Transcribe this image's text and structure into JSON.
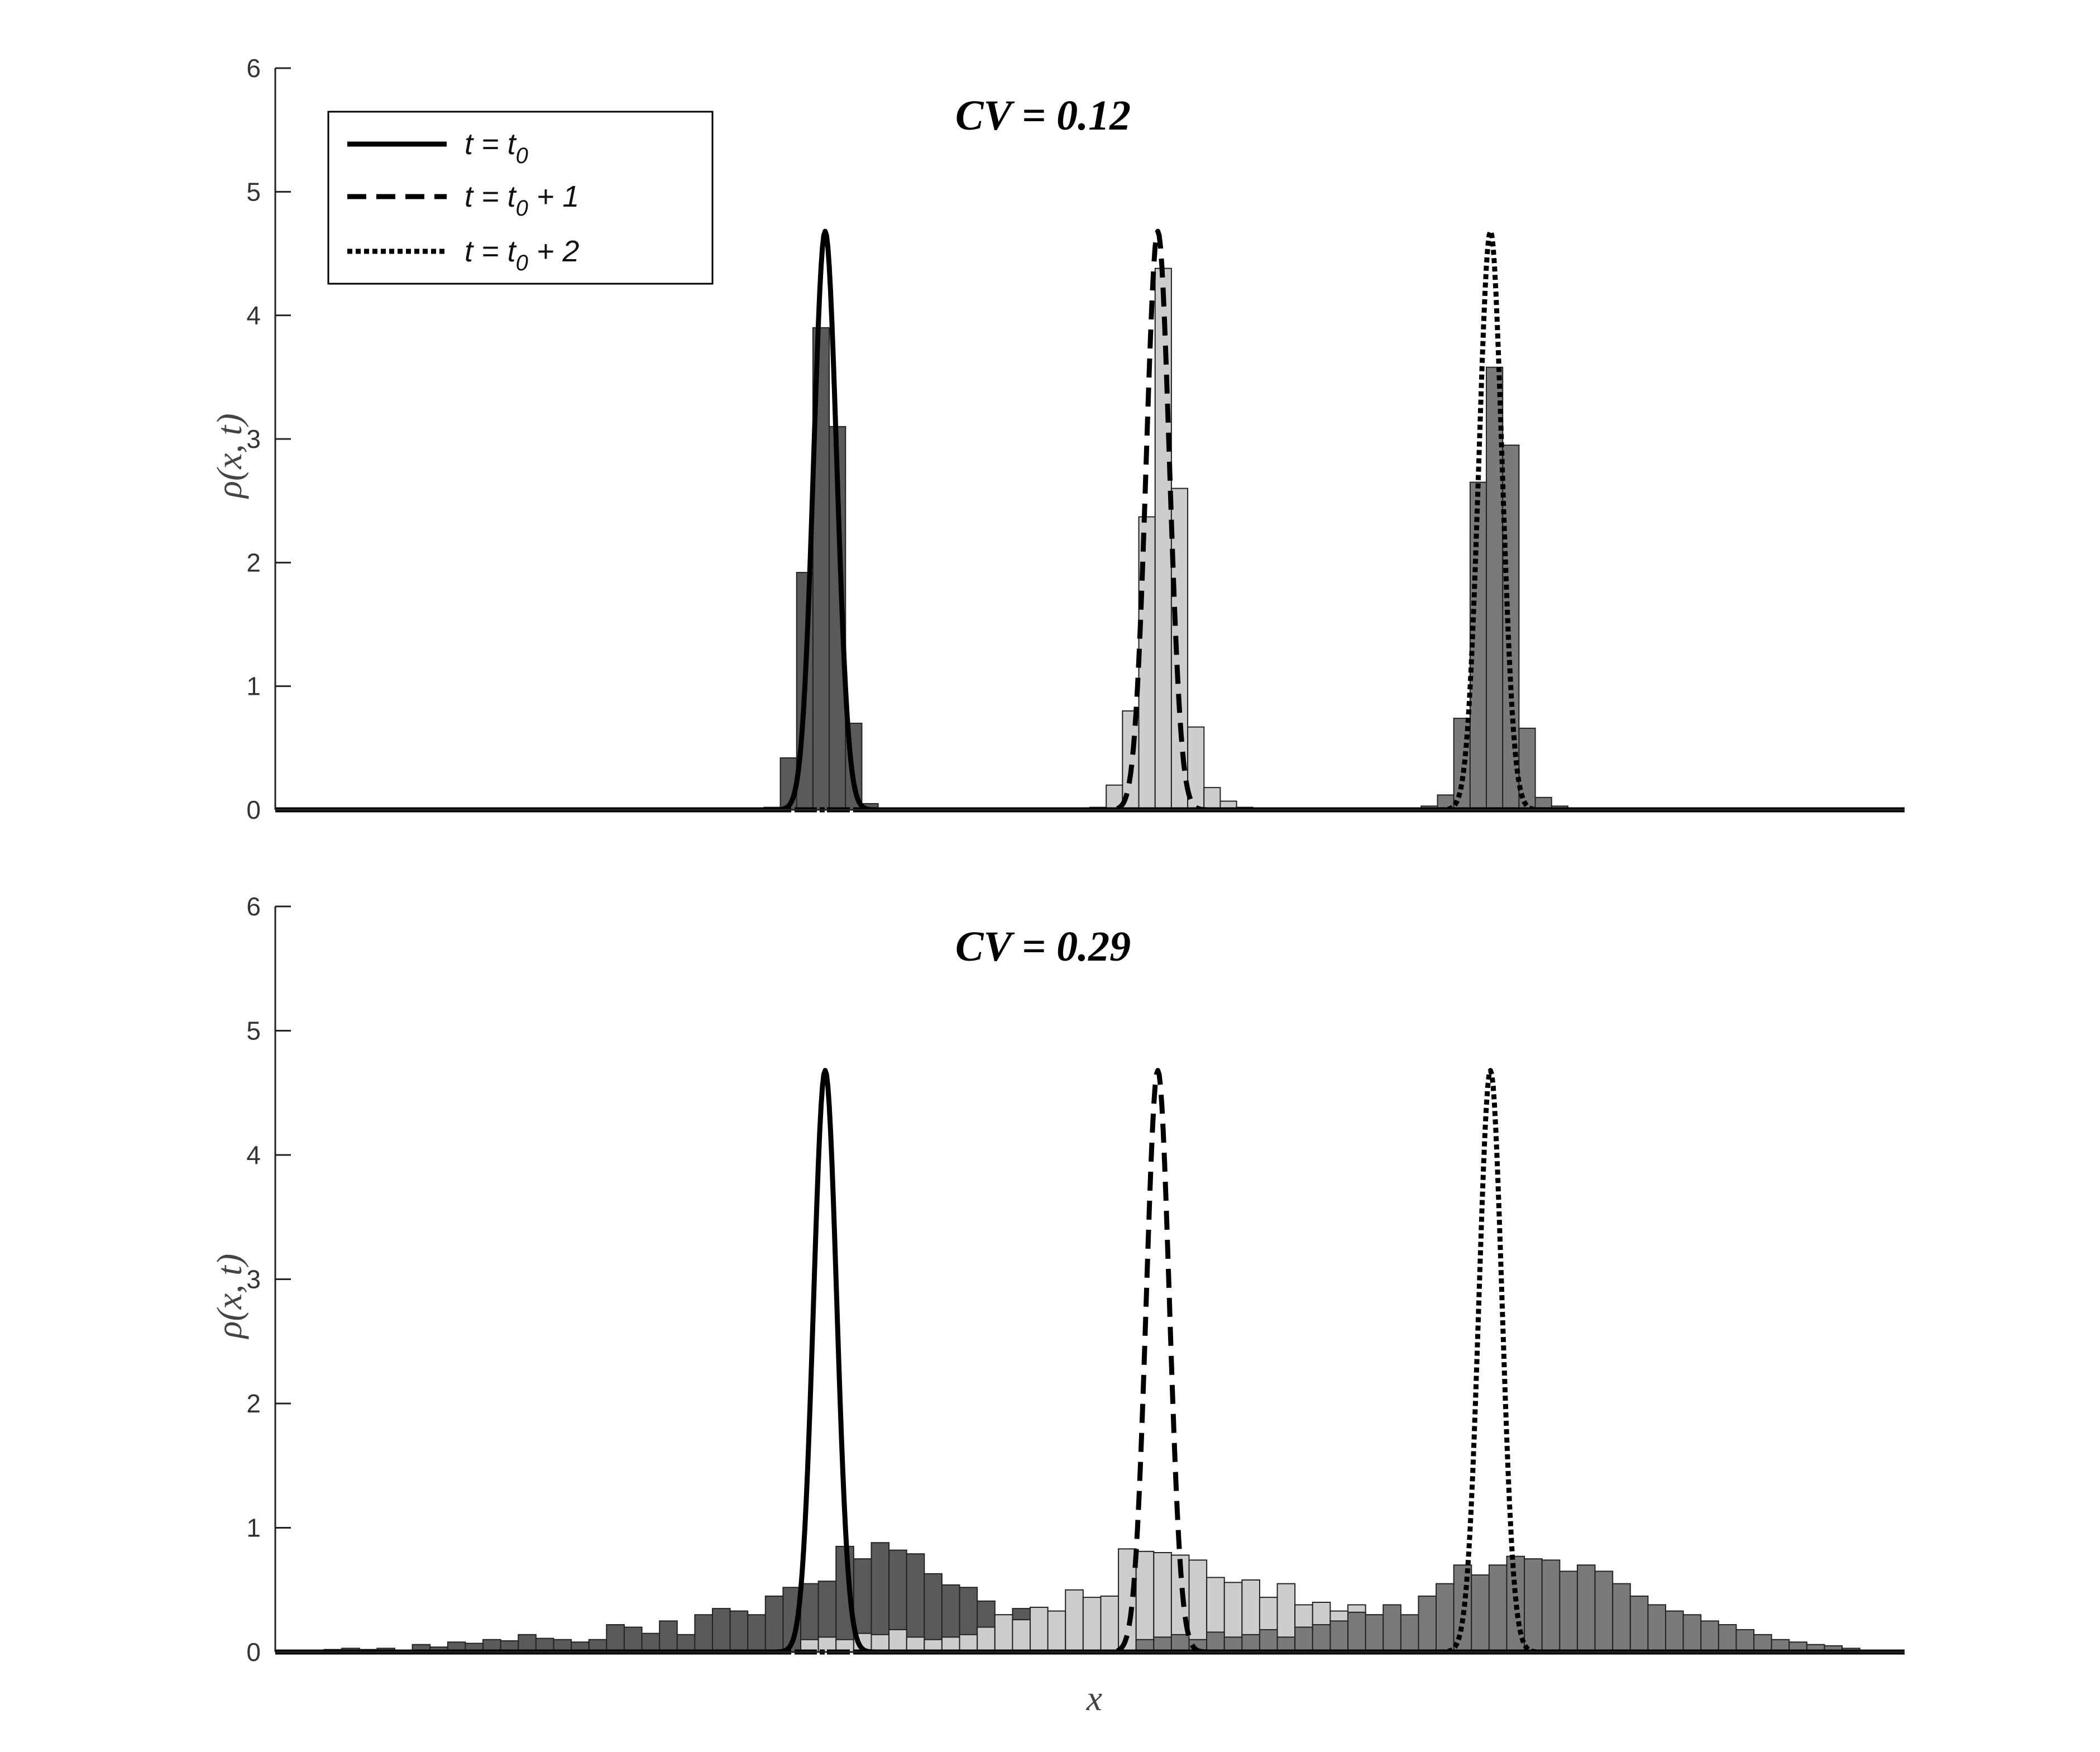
{
  "figure": {
    "xlabel": "x",
    "legend": {
      "placement": "top-left",
      "entries": [
        {
          "style": "solid",
          "var": "t",
          "eq": " = ",
          "base": "t",
          "sub": "0",
          "suffix": ""
        },
        {
          "style": "dashed",
          "var": "t",
          "eq": " = ",
          "base": "t",
          "sub": "0",
          "suffix": " + 1"
        },
        {
          "style": "dotted",
          "var": "t",
          "eq": " = ",
          "base": "t",
          "sub": "0",
          "suffix": " + 2"
        }
      ]
    }
  },
  "colors": {
    "dark_bars": "#5a5a5a",
    "light_bars": "#cdcdcd",
    "mid_bars": "#7a7a7a",
    "curves": "#000000"
  },
  "chart_data": [
    {
      "type": "bar",
      "title": "CV = 0.12",
      "xlabel": "",
      "ylabel": "ρ(x, t)",
      "xlim": [
        0,
        12
      ],
      "ylim": [
        0,
        6
      ],
      "yticks": [
        0,
        1,
        2,
        3,
        4,
        5,
        6
      ],
      "grid": false,
      "bin_width": 0.12,
      "curves": [
        {
          "name": "t = t0",
          "style": "solid",
          "center": 4.05,
          "peak": 4.68,
          "sigma": 0.085
        },
        {
          "name": "t = t0 + 1",
          "style": "dashed",
          "center": 6.5,
          "peak": 4.68,
          "sigma": 0.085
        },
        {
          "name": "t = t0 + 2",
          "style": "dotted",
          "center": 8.95,
          "peak": 4.68,
          "sigma": 0.085
        }
      ],
      "histograms": [
        {
          "group": "t = t0",
          "shade": "dark",
          "x": [
            3.6,
            3.72,
            3.84,
            3.96,
            4.08,
            4.2,
            4.32,
            4.44,
            4.56
          ],
          "values": [
            0.02,
            0.42,
            1.92,
            3.9,
            3.1,
            0.7,
            0.05,
            0.01,
            0.0
          ]
        },
        {
          "group": "t = t0 + 1",
          "shade": "light",
          "x": [
            6.0,
            6.12,
            6.24,
            6.36,
            6.48,
            6.6,
            6.72,
            6.84,
            6.96,
            7.08
          ],
          "values": [
            0.02,
            0.2,
            0.8,
            2.37,
            4.38,
            2.6,
            0.67,
            0.18,
            0.07,
            0.02
          ]
        },
        {
          "group": "t = t0 + 2",
          "shade": "mid",
          "x": [
            8.44,
            8.56,
            8.68,
            8.8,
            8.92,
            9.04,
            9.16,
            9.28,
            9.4,
            9.52
          ],
          "values": [
            0.03,
            0.12,
            0.74,
            2.65,
            3.58,
            2.95,
            0.66,
            0.1,
            0.03,
            0.01
          ]
        }
      ]
    },
    {
      "type": "bar",
      "title": "CV = 0.29",
      "xlabel": "x",
      "ylabel": "ρ(x, t)",
      "xlim": [
        0,
        12
      ],
      "ylim": [
        0,
        6
      ],
      "yticks": [
        0,
        1,
        2,
        3,
        4,
        5,
        6
      ],
      "grid": false,
      "bin_width": 0.13,
      "curves": [
        {
          "name": "t = t0",
          "style": "solid",
          "center": 4.05,
          "peak": 4.68,
          "sigma": 0.085
        },
        {
          "name": "t = t0 + 1",
          "style": "dashed",
          "center": 6.5,
          "peak": 4.68,
          "sigma": 0.085
        },
        {
          "name": "t = t0 + 2",
          "style": "dotted",
          "center": 8.95,
          "peak": 4.68,
          "sigma": 0.085
        }
      ],
      "histograms": [
        {
          "group": "t = t0",
          "shade": "dark",
          "x": [
            0.1,
            0.23,
            0.36,
            0.49,
            0.62,
            0.75,
            0.88,
            1.01,
            1.14,
            1.27,
            1.4,
            1.53,
            1.66,
            1.79,
            1.92,
            2.05,
            2.18,
            2.31,
            2.44,
            2.57,
            2.7,
            2.83,
            2.96,
            3.09,
            3.22,
            3.35,
            3.48,
            3.61,
            3.74,
            3.87,
            4.0,
            4.13,
            4.26,
            4.39,
            4.52,
            4.65,
            4.78,
            4.91,
            5.04,
            5.17,
            5.3,
            5.43,
            5.56,
            5.69,
            5.82,
            5.95
          ],
          "values": [
            0.0,
            0.01,
            0.02,
            0.03,
            0.02,
            0.03,
            0.01,
            0.06,
            0.04,
            0.08,
            0.07,
            0.1,
            0.09,
            0.14,
            0.11,
            0.1,
            0.08,
            0.1,
            0.22,
            0.2,
            0.15,
            0.25,
            0.14,
            0.3,
            0.35,
            0.33,
            0.3,
            0.45,
            0.52,
            0.55,
            0.57,
            0.85,
            0.75,
            0.88,
            0.82,
            0.79,
            0.63,
            0.54,
            0.52,
            0.41,
            0.3,
            0.35,
            0.28,
            0.2,
            0.15,
            0.1
          ]
        },
        {
          "group": "t = t0 + 1",
          "shade": "light",
          "x": [
            3.87,
            4.0,
            4.13,
            4.26,
            4.39,
            4.52,
            4.65,
            4.78,
            4.91,
            5.04,
            5.17,
            5.3,
            5.43,
            5.56,
            5.69,
            5.82,
            5.95,
            6.08,
            6.21,
            6.34,
            6.47,
            6.6,
            6.73,
            6.86,
            6.99,
            7.12,
            7.25,
            7.38,
            7.51,
            7.64,
            7.77,
            7.9,
            8.03,
            8.16,
            8.29
          ],
          "values": [
            0.1,
            0.12,
            0.1,
            0.15,
            0.14,
            0.18,
            0.12,
            0.1,
            0.12,
            0.14,
            0.2,
            0.3,
            0.26,
            0.36,
            0.33,
            0.5,
            0.44,
            0.45,
            0.83,
            0.81,
            0.8,
            0.78,
            0.74,
            0.6,
            0.56,
            0.58,
            0.44,
            0.55,
            0.38,
            0.4,
            0.33,
            0.38,
            0.3,
            0.15,
            0.1
          ]
        },
        {
          "group": "t = t0 + 2",
          "shade": "mid",
          "x": [
            6.34,
            6.47,
            6.6,
            6.73,
            6.86,
            6.99,
            7.12,
            7.25,
            7.38,
            7.51,
            7.64,
            7.77,
            7.9,
            8.03,
            8.16,
            8.29,
            8.42,
            8.55,
            8.68,
            8.81,
            8.94,
            9.07,
            9.2,
            9.33,
            9.46,
            9.59,
            9.72,
            9.85,
            9.98,
            10.11,
            10.24,
            10.37,
            10.5,
            10.63,
            10.76,
            10.89,
            11.02,
            11.15,
            11.28,
            11.41,
            11.54,
            11.67
          ],
          "values": [
            0.1,
            0.12,
            0.14,
            0.1,
            0.16,
            0.12,
            0.14,
            0.18,
            0.12,
            0.2,
            0.22,
            0.25,
            0.32,
            0.3,
            0.38,
            0.3,
            0.45,
            0.55,
            0.7,
            0.62,
            0.7,
            0.77,
            0.75,
            0.74,
            0.65,
            0.7,
            0.65,
            0.55,
            0.45,
            0.38,
            0.33,
            0.3,
            0.25,
            0.22,
            0.18,
            0.14,
            0.1,
            0.08,
            0.06,
            0.05,
            0.03,
            0.01
          ]
        }
      ]
    }
  ]
}
